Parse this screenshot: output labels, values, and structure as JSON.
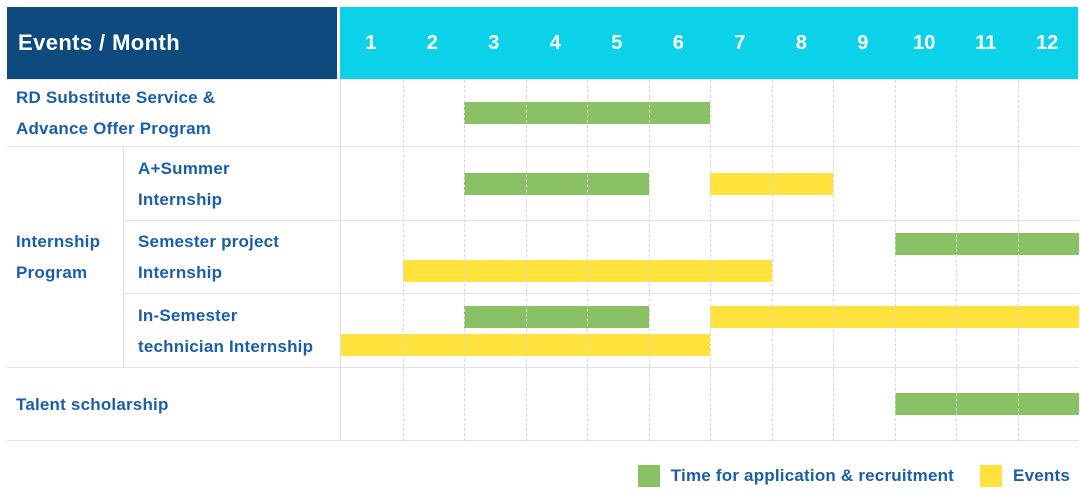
{
  "colors": {
    "header_bg": "#0d4a7e",
    "month_header_bg": "#0cd2e9",
    "green": "#8ac164",
    "yellow": "#ffe23c",
    "label_text": "#1b5ea9"
  },
  "header": {
    "title": "Events / Month"
  },
  "chart_data": {
    "type": "gantt",
    "xlabel": "Month",
    "month_ticks": [
      "1",
      "2",
      "3",
      "4",
      "5",
      "6",
      "7",
      "8",
      "9",
      "10",
      "11",
      "12"
    ],
    "x_range": [
      1,
      12
    ],
    "group_label": "Internship Program",
    "group_label_lines": [
      "Internship",
      "Program"
    ],
    "rows": [
      {
        "label": "RD Substitute Service & Advance Offer Program",
        "label_lines": [
          "RD Substitute Service &",
          "Advance Offer Program"
        ],
        "group": "",
        "bars": [
          {
            "series": "Time for application & recruitment",
            "color_key": "green",
            "start_month": 3,
            "end_month": 6,
            "lane": "center"
          }
        ]
      },
      {
        "label": "A+Summer Internship",
        "label_lines": [
          "A+Summer",
          "Internship"
        ],
        "group": "Internship Program",
        "bars": [
          {
            "series": "Time for application & recruitment",
            "color_key": "green",
            "start_month": 3,
            "end_month": 5,
            "lane": "center"
          },
          {
            "series": "Events",
            "color_key": "yellow",
            "start_month": 7,
            "end_month": 8,
            "lane": "center"
          }
        ]
      },
      {
        "label": "Semester project Internship",
        "label_lines": [
          "Semester project",
          "Internship"
        ],
        "group": "Internship Program",
        "bars": [
          {
            "series": "Time for application & recruitment",
            "color_key": "green",
            "start_month": 10,
            "end_month": 12,
            "lane": "top"
          },
          {
            "series": "Events",
            "color_key": "yellow",
            "start_month": 2,
            "end_month": 7,
            "lane": "bottom"
          }
        ]
      },
      {
        "label": "In-Semester technician Internship",
        "label_lines": [
          "In-Semester",
          "technician Internship"
        ],
        "group": "Internship Program",
        "bars": [
          {
            "series": "Time for application & recruitment",
            "color_key": "green",
            "start_month": 3,
            "end_month": 5,
            "lane": "top"
          },
          {
            "series": "Events",
            "color_key": "yellow",
            "start_month": 7,
            "end_month": 12,
            "lane": "top"
          },
          {
            "series": "Events",
            "color_key": "yellow",
            "start_month": 1,
            "end_month": 6,
            "lane": "bottom"
          }
        ]
      },
      {
        "label": "Talent scholarship",
        "label_lines": [
          "Talent scholarship"
        ],
        "group": "",
        "bars": [
          {
            "series": "Time for application & recruitment",
            "color_key": "green",
            "start_month": 10,
            "end_month": 12,
            "lane": "center"
          }
        ]
      }
    ],
    "legend": [
      {
        "label": "Time for application & recruitment",
        "color_key": "green"
      },
      {
        "label": "Events",
        "color_key": "yellow"
      }
    ]
  }
}
